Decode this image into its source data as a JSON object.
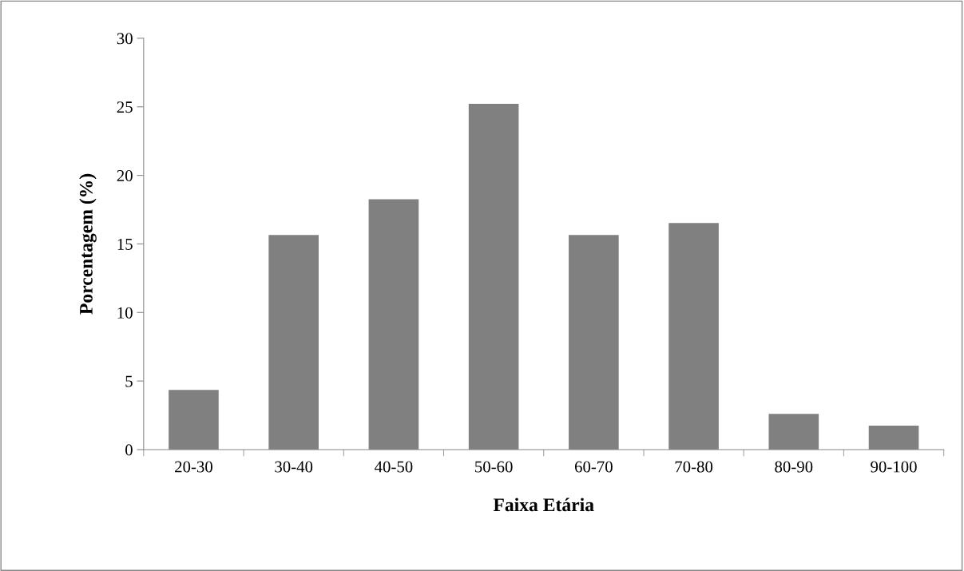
{
  "chart_data": {
    "type": "bar",
    "xlabel": "Faixa Etária",
    "ylabel": "Porcentagem (%)",
    "categories": [
      "20-30",
      "30-40",
      "40-50",
      "50-60",
      "60-70",
      "70-80",
      "80-90",
      "90-100"
    ],
    "values": [
      4.35,
      15.65,
      18.26,
      25.22,
      15.65,
      16.52,
      2.61,
      1.74
    ],
    "color": "#808080",
    "ylim": [
      0,
      30
    ],
    "yticks": [
      0,
      5,
      10,
      15,
      20,
      25,
      30
    ],
    "grid": false
  }
}
